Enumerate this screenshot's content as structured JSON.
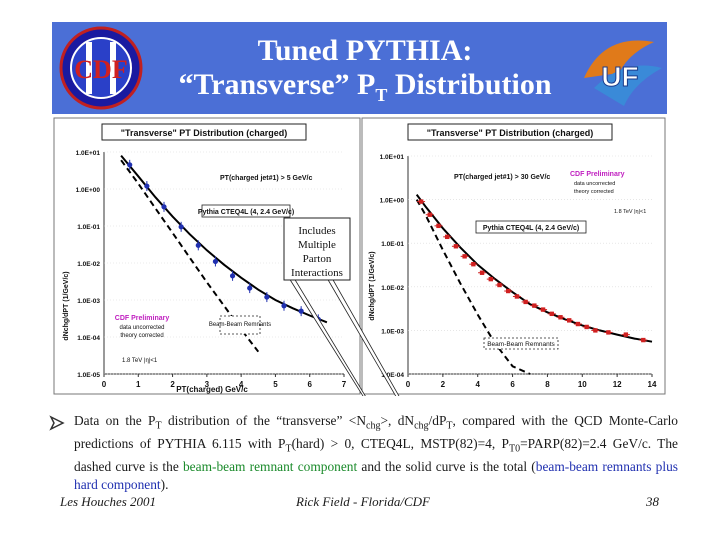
{
  "slide": {
    "title_line1": "Tuned PYTHIA:",
    "title_line2_pre": "“Transverse” P",
    "title_line2_sub": "T",
    "title_line2_post": " Distribution",
    "logo_left": "CDF",
    "logo_right": "UF"
  },
  "callout": {
    "text": "Includes Multiple Parton Interactions"
  },
  "caption": {
    "p1": "Data on the P",
    "p1s": "T",
    "p2": " distribution of the “transverse” <N",
    "p2s": "chg",
    "p3": ">, dN",
    "p3s": "chg",
    "p4": "/dP",
    "p4s": "T",
    "p5": ", compared with the QCD Monte-Carlo predictions of PYTHIA 6.115 with P",
    "p5s": "T",
    "p6": "(hard) > 0, CTEQ4L, MSTP(82)=4, P",
    "p6s": "T0",
    "p7": "=PARP(82)=2.4 GeV/c. The dashed curve is the ",
    "green": "beam-beam remnant component",
    "p8": " and the solid curve is the total (",
    "blue": "beam-beam remnants plus hard component",
    "p9": ")."
  },
  "footer": {
    "left": "Les Houches 2001",
    "center": "Rick Field - Florida/CDF",
    "right": "38"
  },
  "chart_data": [
    {
      "type": "scatter",
      "title": "\"Transverse\" PT Distribution (charged)",
      "xlabel": "PT(charged) GeV/c",
      "ylabel": "dNchg/dPT (1/GeV/c)",
      "log_y": true,
      "xlim": [
        0,
        7
      ],
      "ylim": [
        1e-05,
        10
      ],
      "xticks": [
        "0",
        "1",
        "2",
        "3",
        "4",
        "5",
        "6",
        "7"
      ],
      "yticks": [
        "1.0E-05",
        "1.0E-04",
        "1.0E-03",
        "1.0E-02",
        "1.0E-01",
        "1.0E+00",
        "1.0E+01"
      ],
      "annotations": [
        "PT(charged jet#1) > 5 GeV/c",
        "Pythia CTEQ4L (4, 2.4 GeV/c)",
        "Beam-Beam Remnants",
        "CDF Preliminary",
        "data uncorrected",
        "theory corrected",
        "1.8 TeV |η|<1"
      ],
      "data_points": {
        "x": [
          0.75,
          1.25,
          1.75,
          2.25,
          2.75,
          3.25,
          3.75,
          4.25,
          4.75,
          5.25,
          5.75,
          6.25
        ],
        "y": [
          4.5,
          1.2,
          0.33,
          0.095,
          0.03,
          0.011,
          0.0045,
          0.0021,
          0.0012,
          0.0007,
          0.0005,
          0.0003
        ]
      },
      "series": [
        {
          "curve": "total",
          "x": [
            0.5,
            1,
            1.5,
            2,
            2.5,
            3,
            3.5,
            4,
            4.5,
            5,
            5.5,
            6,
            6.5
          ],
          "y": [
            8,
            2.2,
            0.6,
            0.18,
            0.06,
            0.022,
            0.009,
            0.004,
            0.0019,
            0.001,
            0.0006,
            0.00038,
            0.00025
          ]
        },
        {
          "curve": "beam-beam",
          "x": [
            0.5,
            1,
            1.5,
            2,
            2.5,
            3,
            3.5,
            4,
            4.5
          ],
          "y": [
            6,
            1.4,
            0.3,
            0.065,
            0.014,
            0.003,
            0.0007,
            0.00016,
            4e-05
          ]
        }
      ]
    },
    {
      "type": "scatter",
      "title": "\"Transverse\" PT Distribution (charged)",
      "xlabel": "PT(charged) GeV/c",
      "ylabel": "dNchg/dPT (1/GeV/c)",
      "log_y": true,
      "xlim": [
        0,
        14
      ],
      "ylim": [
        0.0001,
        10
      ],
      "xticks": [
        "0",
        "2",
        "4",
        "6",
        "8",
        "10",
        "12",
        "14"
      ],
      "yticks": [
        "1.0E-04",
        "1.0E-03",
        "1.0E-02",
        "1.0E-01",
        "1.0E+00",
        "1.0E+01"
      ],
      "annotations": [
        "PT(charged jet#1) > 30 GeV/c",
        "CDF Preliminary",
        "data uncorrected",
        "theory corrected",
        "1.8 TeV |η|<1",
        "Pythia CTEQ4L (4, 2.4 GeV/c)",
        "Beam-Beam Remnants"
      ],
      "data_points": {
        "x": [
          0.75,
          1.25,
          1.75,
          2.25,
          2.75,
          3.25,
          3.75,
          4.25,
          4.75,
          5.25,
          5.75,
          6.25,
          6.75,
          7.25,
          7.75,
          8.25,
          8.75,
          9.25,
          9.75,
          10.25,
          10.75,
          11.5,
          12.5,
          13.5
        ],
        "y": [
          0.9,
          0.45,
          0.25,
          0.14,
          0.085,
          0.05,
          0.033,
          0.021,
          0.015,
          0.011,
          0.008,
          0.006,
          0.0045,
          0.0037,
          0.003,
          0.0024,
          0.002,
          0.0017,
          0.0014,
          0.0012,
          0.001,
          0.0009,
          0.0008,
          0.0006
        ]
      },
      "series": [
        {
          "curve": "total",
          "x": [
            0.5,
            1,
            2,
            3,
            4,
            5,
            6,
            7,
            8,
            9,
            10,
            11,
            12,
            13,
            14
          ],
          "y": [
            1.3,
            0.7,
            0.22,
            0.08,
            0.032,
            0.015,
            0.0075,
            0.004,
            0.0026,
            0.0018,
            0.0013,
            0.001,
            0.0008,
            0.00065,
            0.00055
          ]
        },
        {
          "curve": "beam-beam",
          "x": [
            0.5,
            1,
            2,
            3,
            4,
            5,
            6,
            7
          ],
          "y": [
            1.0,
            0.45,
            0.07,
            0.012,
            0.0023,
            0.0005,
            0.00015,
            0.0001
          ]
        }
      ]
    }
  ]
}
